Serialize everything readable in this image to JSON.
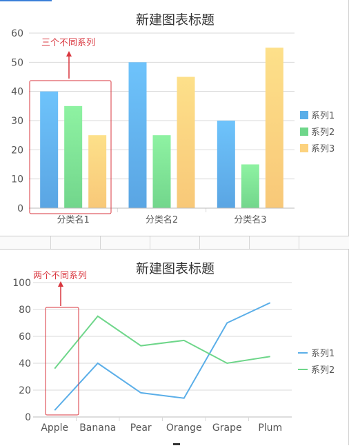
{
  "chart_data": [
    {
      "type": "bar",
      "title": "新建图表标题",
      "categories": [
        "分类名1",
        "分类名2",
        "分类名3"
      ],
      "series": [
        {
          "name": "系列1",
          "values": [
            40,
            50,
            30
          ]
        },
        {
          "name": "系列2",
          "values": [
            35,
            25,
            15
          ]
        },
        {
          "name": "系列3",
          "values": [
            25,
            45,
            55
          ]
        }
      ],
      "ylim": [
        0,
        60
      ],
      "yticks": [
        0,
        10,
        20,
        30,
        40,
        50,
        60
      ],
      "grid": true,
      "legend_position": "right",
      "annotation": "三个不同系列"
    },
    {
      "type": "line",
      "title": "新建图表标题",
      "categories": [
        "Apple",
        "Banana",
        "Pear",
        "Orange",
        "Grape",
        "Plum"
      ],
      "series": [
        {
          "name": "系列1",
          "values": [
            5,
            40,
            18,
            14,
            70,
            85
          ]
        },
        {
          "name": "系列2",
          "values": [
            36,
            75,
            53,
            57,
            40,
            45
          ]
        }
      ],
      "ylim": [
        0,
        100
      ],
      "yticks": [
        0,
        20,
        40,
        60,
        80,
        100
      ],
      "grid": true,
      "legend_position": "right",
      "annotation": "两个不同系列"
    }
  ],
  "colors": {
    "series1": "#5aaee8",
    "series2": "#6ed68a",
    "series3": "#fcd27e",
    "annotation": "#d9363e",
    "grid": "#d9d9d9",
    "axis_text": "#555555"
  }
}
